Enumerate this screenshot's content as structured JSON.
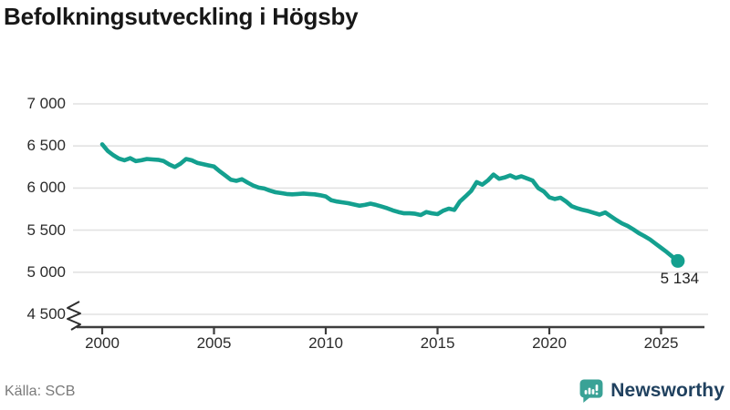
{
  "title": "Befolkningsutveckling i Högsby",
  "source": "Källa: SCB",
  "branding": {
    "name": "Newsworthy",
    "icon": "newsworthy-bubble-chart-icon",
    "icon_color": "#3aa296",
    "text_color": "#20415f"
  },
  "colors": {
    "background": "#ffffff",
    "line": "#14a08f",
    "endpoint_dot": "#14a08f",
    "grid": "#e2e2e2",
    "axis": "#3d3d3d",
    "title": "#171717",
    "tick_label": "#2b2b2b",
    "endpoint_label": "#1f1f1f",
    "source": "#7a7a7a"
  },
  "chart_data": {
    "type": "line",
    "title": "Befolkningsutveckling i Högsby",
    "xlabel": "",
    "ylabel": "",
    "x_start": 2000,
    "x_step": 0.25,
    "x_ticks": [
      2000,
      2005,
      2010,
      2015,
      2020,
      2025
    ],
    "x_tick_labels": [
      "2000",
      "2005",
      "2010",
      "2015",
      "2020",
      "2025"
    ],
    "y_tick_values": [
      7000,
      6500,
      6000,
      5500,
      5000,
      4500
    ],
    "y_tick_labels": [
      "7 000",
      "6 500",
      "6 000",
      "5 500",
      "5 000",
      "4 500"
    ],
    "ylim": [
      4500,
      7000
    ],
    "axis_break": true,
    "grid": "horizontal",
    "legend": "none",
    "endpoint_label": "5 134",
    "endpoint_value": 5134,
    "values": [
      6520,
      6440,
      6390,
      6350,
      6330,
      6355,
      6320,
      6330,
      6345,
      6340,
      6335,
      6320,
      6280,
      6250,
      6290,
      6345,
      6330,
      6300,
      6285,
      6270,
      6255,
      6200,
      6150,
      6100,
      6085,
      6105,
      6065,
      6030,
      6005,
      5995,
      5970,
      5950,
      5940,
      5930,
      5925,
      5930,
      5935,
      5930,
      5925,
      5915,
      5900,
      5855,
      5840,
      5830,
      5820,
      5805,
      5790,
      5800,
      5815,
      5800,
      5780,
      5760,
      5735,
      5715,
      5700,
      5700,
      5695,
      5680,
      5715,
      5700,
      5690,
      5730,
      5755,
      5740,
      5840,
      5900,
      5965,
      6070,
      6040,
      6090,
      6160,
      6110,
      6125,
      6150,
      6120,
      6140,
      6115,
      6090,
      6000,
      5960,
      5890,
      5870,
      5885,
      5840,
      5785,
      5760,
      5740,
      5725,
      5705,
      5685,
      5710,
      5665,
      5620,
      5580,
      5550,
      5510,
      5465,
      5430,
      5390,
      5340,
      5290,
      5240,
      5185,
      5134
    ]
  }
}
